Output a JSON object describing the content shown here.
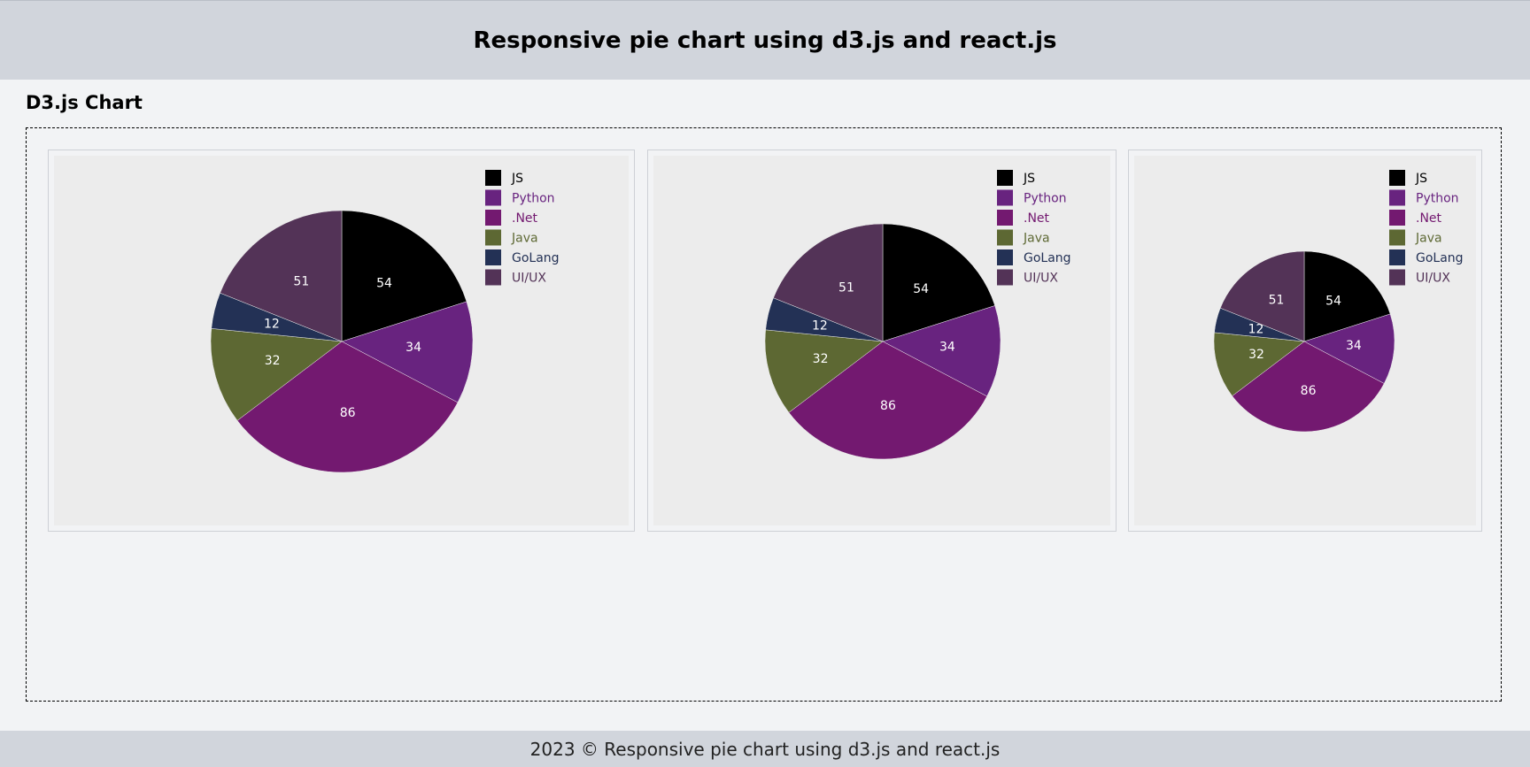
{
  "header": {
    "title": "Responsive pie chart using d3.js and react.js"
  },
  "section": {
    "title": "D3.js Chart"
  },
  "footer": {
    "text": "2023 © Responsive pie chart using d3.js and react.js"
  },
  "colors": {
    "JS": "#000000",
    "Python": "#68237f",
    ".Net": "#731970",
    "Java": "#5d6833",
    "GoLang": "#233155",
    "UI/UX": "#533357"
  },
  "chart_data": [
    {
      "type": "pie",
      "title": "",
      "legend_position": "top-right",
      "categories": [
        "JS",
        "Python",
        ".Net",
        "Java",
        "GoLang",
        "UI/UX"
      ],
      "values": [
        54,
        34,
        86,
        32,
        12,
        51
      ]
    },
    {
      "type": "pie",
      "title": "",
      "legend_position": "top-right",
      "categories": [
        "JS",
        "Python",
        ".Net",
        "Java",
        "GoLang",
        "UI/UX"
      ],
      "values": [
        54,
        34,
        86,
        32,
        12,
        51
      ]
    },
    {
      "type": "pie",
      "title": "",
      "legend_position": "top-right",
      "categories": [
        "JS",
        "Python",
        ".Net",
        "Java",
        "GoLang",
        "UI/UX"
      ],
      "values": [
        54,
        34,
        86,
        32,
        12,
        51
      ]
    }
  ]
}
